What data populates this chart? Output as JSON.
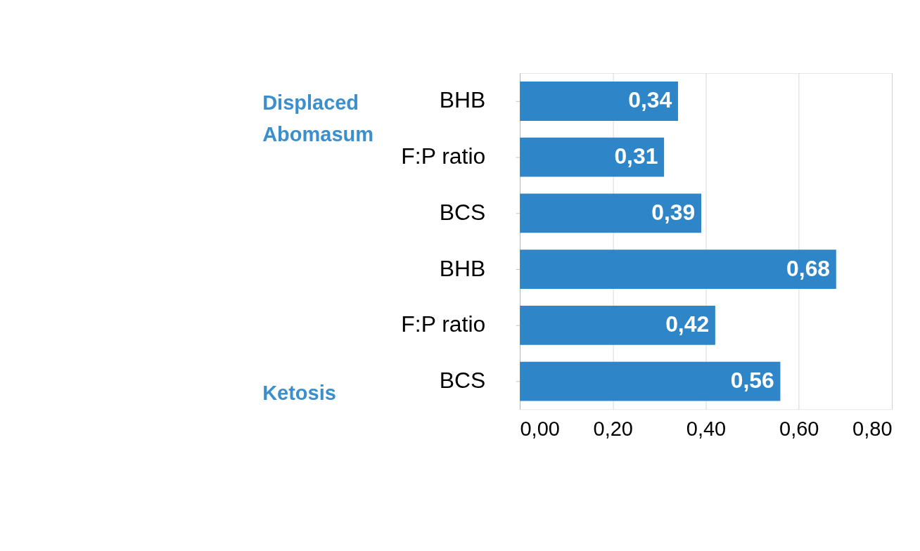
{
  "chart_data": {
    "type": "bar",
    "orientation": "horizontal",
    "categories": [
      "BHB",
      "F:P ratio",
      "BCS",
      "BHB",
      "F:P ratio",
      "BCS"
    ],
    "values": [
      0.34,
      0.31,
      0.39,
      0.68,
      0.42,
      0.56
    ],
    "value_labels": [
      "0,34",
      "0,31",
      "0,39",
      "0,68",
      "0,42",
      "0,56"
    ],
    "color": "#2e86c8",
    "xlim": [
      0,
      0.8
    ],
    "xticks": [
      {
        "value": 0,
        "label": "0,00"
      },
      {
        "value": 0.2,
        "label": "0,20"
      },
      {
        "value": 0.4,
        "label": "0,40"
      },
      {
        "value": 0.6,
        "label": "0,60"
      },
      {
        "value": 0.8,
        "label": "0,80"
      }
    ],
    "grid": "x",
    "annotations": [
      "Displaced Abomasum",
      "Ketosis"
    ]
  }
}
